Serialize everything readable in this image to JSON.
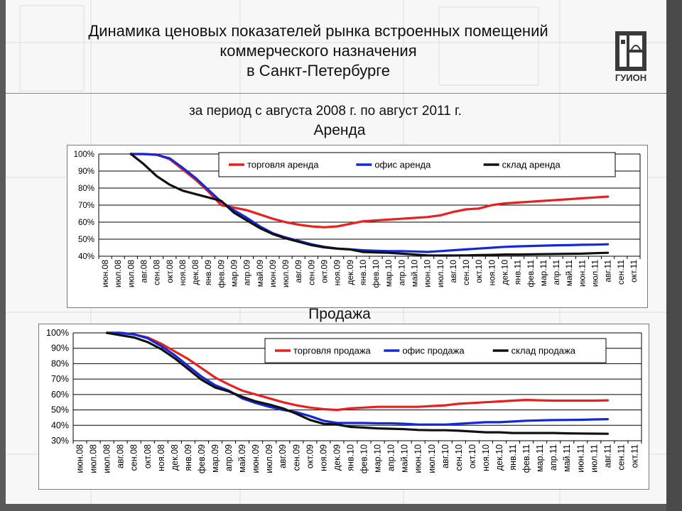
{
  "slide": {
    "title": "Динамика ценовых показателей рынка встроенных помещений\nкоммерческого назначения\nв Санкт-Петербурге",
    "subtitle": "за период с августа 2008 г. по август 2011 г.",
    "logo_text": "ГУИОН",
    "logo_icon": "building-logo-icon"
  },
  "chart_data": [
    {
      "type": "line",
      "title": "Аренда",
      "ylim": [
        0.4,
        1.0
      ],
      "yticks": [
        "40%",
        "50%",
        "60%",
        "70%",
        "80%",
        "90%",
        "100%"
      ],
      "grid": true,
      "legend": "top-right",
      "categories": [
        "июн.08",
        "июл.08",
        "июл.08",
        "авг.08",
        "сен.08",
        "окт.08",
        "ноя.08",
        "дек.08",
        "янв.09",
        "фев.09",
        "мар.09",
        "апр.09",
        "май.09",
        "июн.09",
        "июл.09",
        "авг.09",
        "сен.09",
        "окт.09",
        "ноя.09",
        "дек.09",
        "янв.10",
        "фев.10",
        "мар.10",
        "апр.10",
        "май.10",
        "июн.10",
        "июл.10",
        "авг.10",
        "сен.10",
        "окт.10",
        "ноя.10",
        "дек.10",
        "янв.11",
        "фев.11",
        "мар.11",
        "апр.11",
        "май.11",
        "июн.11",
        "июл.11",
        "авг.11",
        "сен.11",
        "окт.11"
      ],
      "series": [
        {
          "name": "торговля аренда",
          "color": "#e8201e",
          "values": [
            null,
            null,
            1.0,
            0.999,
            0.997,
            0.97,
            0.91,
            0.85,
            0.78,
            0.7,
            0.685,
            0.67,
            0.645,
            0.62,
            0.6,
            0.585,
            0.575,
            0.57,
            0.575,
            0.59,
            0.605,
            0.61,
            0.615,
            0.62,
            0.625,
            0.63,
            0.64,
            0.66,
            0.675,
            0.68,
            0.7,
            0.71,
            0.715,
            0.72,
            0.725,
            0.73,
            0.735,
            0.74,
            0.745,
            0.75,
            null,
            null
          ]
        },
        {
          "name": "офис аренда",
          "color": "#1428d8",
          "values": [
            null,
            null,
            1.0,
            1.0,
            0.995,
            0.975,
            0.92,
            0.86,
            0.79,
            0.72,
            0.67,
            0.625,
            0.575,
            0.535,
            0.51,
            0.49,
            0.47,
            0.455,
            0.445,
            0.44,
            0.435,
            0.432,
            0.43,
            0.43,
            0.428,
            0.425,
            0.43,
            0.435,
            0.44,
            0.445,
            0.45,
            0.455,
            0.458,
            0.46,
            0.462,
            0.464,
            0.465,
            0.467,
            0.468,
            0.47,
            null,
            null
          ]
        },
        {
          "name": "склад аренда",
          "color": "#111111",
          "values": [
            null,
            null,
            1.0,
            0.94,
            0.87,
            0.82,
            0.785,
            0.765,
            0.745,
            0.725,
            0.655,
            0.61,
            0.565,
            0.53,
            0.505,
            0.485,
            0.465,
            0.452,
            0.444,
            0.44,
            0.425,
            0.422,
            0.42,
            0.415,
            0.41,
            0.405,
            0.404,
            0.404,
            0.405,
            0.407,
            0.408,
            0.41,
            0.41,
            0.411,
            0.412,
            0.413,
            0.414,
            0.415,
            0.418,
            0.42,
            null,
            null
          ]
        }
      ]
    },
    {
      "type": "line",
      "title": "Продажа",
      "ylim": [
        0.3,
        1.0
      ],
      "yticks": [
        "30%",
        "40%",
        "50%",
        "60%",
        "70%",
        "80%",
        "90%",
        "100%"
      ],
      "grid": true,
      "legend": "top-right",
      "categories": [
        "июн.08",
        "июл.08",
        "июл.08",
        "авг.08",
        "сен.08",
        "окт.08",
        "ноя.08",
        "дек.08",
        "янв.09",
        "фев.09",
        "мар.09",
        "апр.09",
        "май.09",
        "июн.09",
        "июл.09",
        "авг.09",
        "сен.09",
        "окт.09",
        "ноя.09",
        "дек.09",
        "янв.10",
        "фев.10",
        "мар.10",
        "апр.10",
        "май.10",
        "июн.10",
        "июл.10",
        "авг.10",
        "сен.10",
        "окт.10",
        "ноя.10",
        "дек.10",
        "янв.11",
        "фев.11",
        "мар.11",
        "апр.11",
        "май.11",
        "июн.11",
        "июл.11",
        "авг.11",
        "сен.11",
        "окт.11"
      ],
      "series": [
        {
          "name": "торговля продажа",
          "color": "#e8201e",
          "values": [
            null,
            null,
            1.0,
            1.0,
            0.99,
            0.97,
            0.93,
            0.88,
            0.83,
            0.77,
            0.71,
            0.665,
            0.625,
            0.6,
            0.575,
            0.55,
            0.53,
            0.515,
            0.505,
            0.5,
            0.51,
            0.515,
            0.52,
            0.52,
            0.52,
            0.52,
            0.525,
            0.53,
            0.54,
            0.545,
            0.55,
            0.555,
            0.56,
            0.565,
            0.562,
            0.56,
            0.56,
            0.56,
            0.56,
            0.562,
            null,
            null
          ]
        },
        {
          "name": "офис продажа",
          "color": "#1428d8",
          "values": [
            null,
            null,
            1.0,
            1.0,
            0.99,
            0.965,
            0.915,
            0.855,
            0.785,
            0.715,
            0.66,
            0.625,
            0.575,
            0.545,
            0.52,
            0.5,
            0.485,
            0.46,
            0.43,
            0.415,
            0.415,
            0.415,
            0.413,
            0.413,
            0.41,
            0.405,
            0.405,
            0.405,
            0.41,
            0.415,
            0.42,
            0.42,
            0.425,
            0.43,
            0.432,
            0.434,
            0.435,
            0.436,
            0.438,
            0.44,
            null,
            null
          ]
        },
        {
          "name": "склад продажа",
          "color": "#111111",
          "values": [
            null,
            null,
            1.0,
            0.985,
            0.97,
            0.94,
            0.895,
            0.835,
            0.765,
            0.695,
            0.645,
            0.62,
            0.585,
            0.555,
            0.535,
            0.51,
            0.475,
            0.435,
            0.41,
            0.405,
            0.39,
            0.385,
            0.38,
            0.378,
            0.375,
            0.37,
            0.368,
            0.368,
            0.365,
            0.36,
            0.355,
            0.355,
            0.35,
            0.35,
            0.35,
            0.35,
            0.348,
            0.347,
            0.346,
            0.345,
            null,
            null
          ]
        }
      ]
    }
  ]
}
